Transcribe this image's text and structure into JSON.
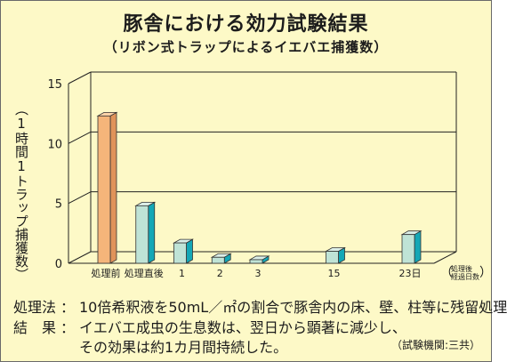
{
  "title": "豚舎における効力試験結果",
  "subtitle": "（リボン式トラップによるイエバエ捕獲数）",
  "notes": {
    "treatment_label": "処理法",
    "treatment_text": "10倍希釈液を50mL／㎡の割合で豚舎内の床、壁、柱等に残留処理",
    "result_label": "結　果",
    "result_line1": "イエバエ成虫の生息数は、翌日から顕著に減少し、",
    "result_line2": "その効果は約1カ月間持続した。",
    "agency": "（試験機関:三共）"
  },
  "colors": {
    "background": "#fdf9c7",
    "bar_before": "#f5b57a",
    "bar_after": "#bfe3d6",
    "bar_after_side": "#14a7b6"
  },
  "chart_data": {
    "type": "bar",
    "categories": [
      "処理前",
      "処理直後",
      "1",
      "2",
      "3",
      "15",
      "23日"
    ],
    "x_positions": [
      0,
      1,
      2,
      3,
      4,
      6,
      8
    ],
    "values": [
      12.3,
      4.8,
      1.7,
      0.5,
      0.3,
      1.0,
      2.4
    ],
    "ylim": [
      0,
      15
    ],
    "yticks": [
      0,
      5,
      10,
      15
    ],
    "ylabel": "（1時間1トラップ捕獲数）",
    "xlabel": "（処理後経過日数）",
    "xlabel_lines": [
      "処理後",
      "経過日数"
    ],
    "grid": true
  }
}
